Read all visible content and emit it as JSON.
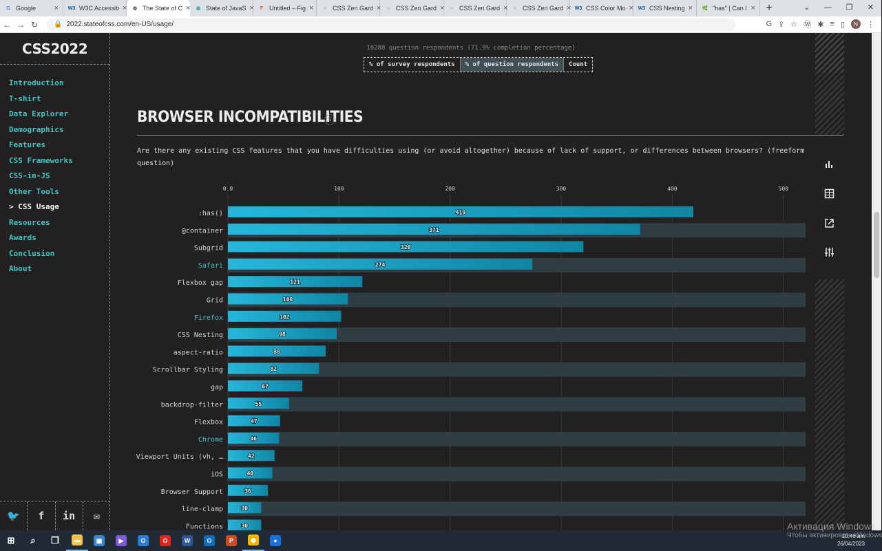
{
  "browser": {
    "tabs": [
      {
        "title": "Google",
        "icon": "G",
        "color": "#4285f4"
      },
      {
        "title": "W3C Accessib",
        "icon": "W3",
        "color": "#005a9c"
      },
      {
        "title": "The State of C",
        "icon": "◍",
        "color": "#555555",
        "active": true
      },
      {
        "title": "State of JavaS",
        "icon": "◍",
        "color": "#2aa198"
      },
      {
        "title": "Untitled – Fig",
        "icon": "F",
        "color": "#f24e1e"
      },
      {
        "title": "CSS Zen Gard",
        "icon": "○",
        "color": "#3c7d5a"
      },
      {
        "title": "CSS Zen Gard",
        "icon": "○",
        "color": "#3c7d5a"
      },
      {
        "title": "CSS Zen Gard",
        "icon": "○",
        "color": "#3c7d5a"
      },
      {
        "title": "CSS Zen Gard",
        "icon": "○",
        "color": "#3c7d5a"
      },
      {
        "title": "CSS Color Mo",
        "icon": "W3",
        "color": "#005a9c"
      },
      {
        "title": "CSS Nesting",
        "icon": "W3",
        "color": "#005a9c"
      },
      {
        "title": "\"has\" | Can I",
        "icon": "🌿",
        "color": "#c9672e"
      }
    ],
    "url": "2022.stateofcss.com/en-US/usage/"
  },
  "site": {
    "logo": "CSS2022",
    "nav": [
      "Introduction",
      "T-shirt",
      "Data Explorer",
      "Demographics",
      "Features",
      "CSS Frameworks",
      "CSS-in-JS",
      "Other Tools",
      "> CSS Usage",
      "Resources",
      "Awards",
      "Conclusion",
      "About"
    ],
    "nav_current_index": 8,
    "social": [
      "twitter-icon",
      "facebook-icon",
      "linkedin-icon",
      "email-icon"
    ]
  },
  "respondents": "10288 question respondents (71.9% completion percentage)",
  "units": {
    "survey": "% of survey respondents",
    "question": "% of question respondents",
    "count": "Count"
  },
  "block": {
    "title": "BROWSER INCOMPATIBILITIES",
    "question": "Are there any existing CSS features that you have difficulties using (or avoid altogether) because of lack of support, or differences between browsers? (freeform question)"
  },
  "colors": {
    "accent": "#41c7c7",
    "bar": "#21a9d1",
    "row_band": "#2e3e44"
  },
  "chart_data": {
    "type": "bar",
    "orientation": "horizontal",
    "xlim": [
      0,
      520
    ],
    "ticks": [
      "0.0",
      "100",
      "200",
      "300",
      "400",
      "500"
    ],
    "tick_values": [
      0,
      100,
      200,
      300,
      400,
      500
    ],
    "categories": [
      ":has()",
      "@container",
      "Subgrid",
      "Safari",
      "Flexbox gap",
      "Grid",
      "Firefox",
      "CSS Nesting",
      "aspect-ratio",
      "Scrollbar Styling",
      "gap",
      "backdrop-filter",
      "Flexbox",
      "Chrome",
      "Viewport Units (vh, …",
      "iOS",
      "Browser Support",
      "line-clamp",
      "Functions"
    ],
    "values": [
      419,
      371,
      320,
      274,
      121,
      108,
      102,
      98,
      88,
      82,
      67,
      55,
      47,
      46,
      42,
      40,
      36,
      30,
      30
    ],
    "highlighted_categories": [
      "Safari",
      "Firefox",
      "Chrome"
    ]
  },
  "taskbar": {
    "apps": [
      "start",
      "search-icon",
      "task-view",
      "explorer",
      "store",
      "app",
      "office",
      "opera",
      "word",
      "outlook",
      "powerpoint",
      "chrome",
      "app2"
    ],
    "time": "10:46 am",
    "date": "26/04/2023"
  },
  "watermark": {
    "line1": "Активация Windows",
    "line2": "Чтобы активировать Windows"
  }
}
